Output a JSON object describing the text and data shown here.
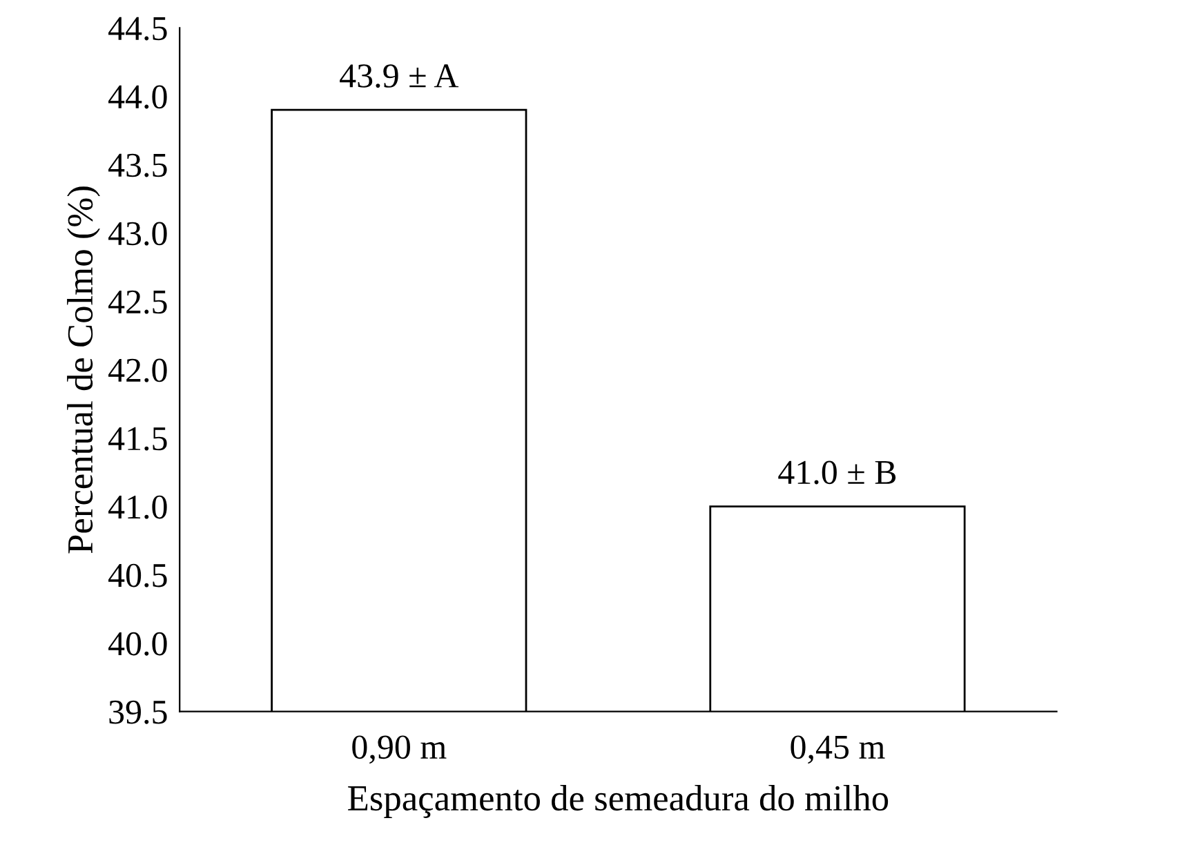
{
  "chart_data": {
    "type": "bar",
    "xlabel": "Espaçamento de semeadura do milho",
    "ylabel": "Percentual de Colmo (%)",
    "categories": [
      "0,90 m",
      "0,45 m"
    ],
    "values": [
      43.9,
      41.0
    ],
    "value_labels": [
      "43.9 ± A",
      "41.0 ± B"
    ],
    "color": "#ffffff",
    "ylim": [
      39.5,
      44.5
    ],
    "yticks": [
      {
        "value": 39.5,
        "label": "39.5"
      },
      {
        "value": 40,
        "label": "40.0"
      },
      {
        "value": 40.5,
        "label": "40.5"
      },
      {
        "value": 41,
        "label": "41.0"
      },
      {
        "value": 41.5,
        "label": "41.5"
      },
      {
        "value": 42,
        "label": "42.0"
      },
      {
        "value": 42.5,
        "label": "42.5"
      },
      {
        "value": 43,
        "label": "43.0"
      },
      {
        "value": 43.5,
        "label": "43.5"
      },
      {
        "value": 44,
        "label": "44.0"
      },
      {
        "value": 44.5,
        "label": "44.5"
      }
    ],
    "grid": false
  }
}
